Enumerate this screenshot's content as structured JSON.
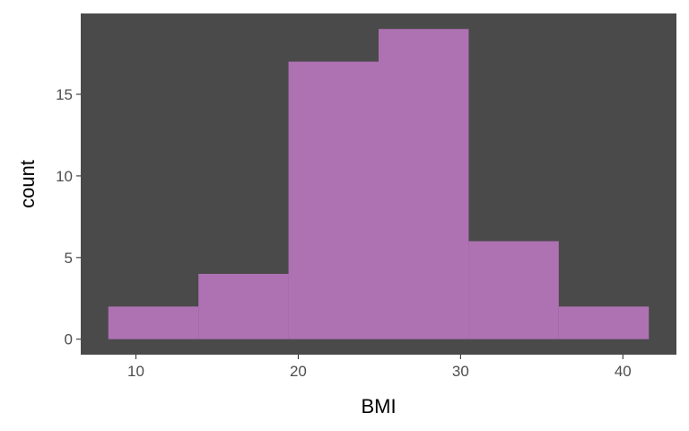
{
  "chart_data": {
    "type": "histogram",
    "xlabel": "BMI",
    "ylabel": "count",
    "bins": [
      {
        "x0": 8.3,
        "x1": 13.85,
        "count": 2
      },
      {
        "x0": 13.85,
        "x1": 19.4,
        "count": 4
      },
      {
        "x0": 19.4,
        "x1": 24.95,
        "count": 17
      },
      {
        "x0": 24.95,
        "x1": 30.5,
        "count": 19
      },
      {
        "x0": 30.5,
        "x1": 36.05,
        "count": 6
      },
      {
        "x0": 36.05,
        "x1": 41.6,
        "count": 2
      }
    ],
    "xlim": [
      6.6,
      43.3
    ],
    "ylim": [
      -0.95,
      19.95
    ],
    "x_ticks": [
      10,
      20,
      30,
      40
    ],
    "y_ticks": [
      0,
      5,
      10,
      15
    ],
    "grid": false,
    "bar_color": "#ae72b3",
    "panel_background": "#4a4a4a"
  }
}
